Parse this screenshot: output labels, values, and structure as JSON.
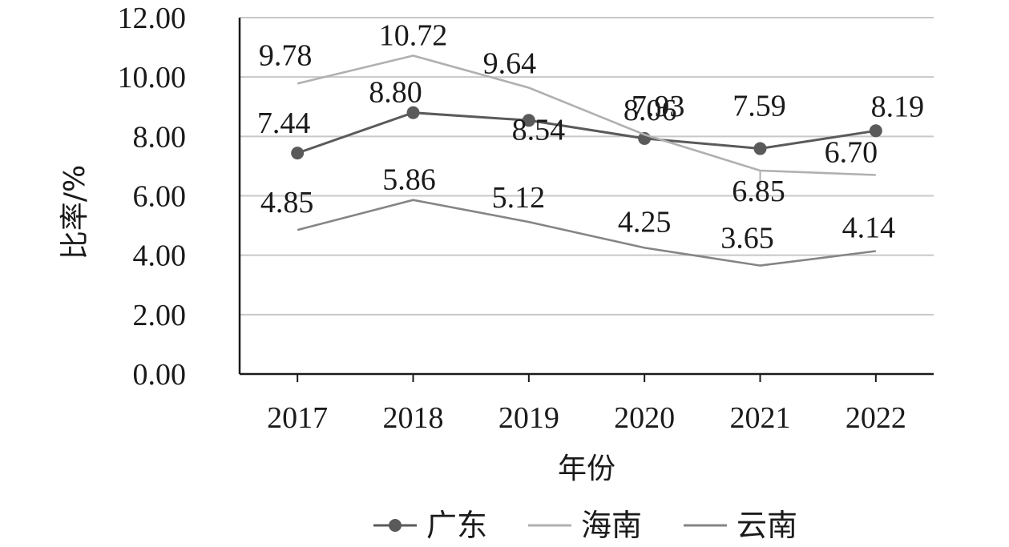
{
  "chart_data": {
    "type": "line",
    "categories": [
      "2017",
      "2018",
      "2019",
      "2020",
      "2021",
      "2022"
    ],
    "xlabel": "年份",
    "ylabel": "比率/%",
    "ylim": [
      0,
      12
    ],
    "yticks": [
      "0.00",
      "2.00",
      "4.00",
      "6.00",
      "8.00",
      "10.00",
      "12.00"
    ],
    "grid": true,
    "legend_position": "bottom",
    "series": [
      {
        "name": "广东",
        "values": [
          7.44,
          8.8,
          8.54,
          7.93,
          7.59,
          8.19
        ],
        "labels": [
          "7.44",
          "8.80",
          "8.54",
          "7.93",
          "7.59",
          "8.19"
        ],
        "color": "#5a5a5a",
        "marker": "circle"
      },
      {
        "name": "海南",
        "values": [
          9.78,
          10.72,
          9.64,
          8.06,
          6.85,
          6.7
        ],
        "labels": [
          "9.78",
          "10.72",
          "9.64",
          "8.06",
          "6.85",
          "6.70"
        ],
        "color": "#b0b0b0",
        "marker": "none"
      },
      {
        "name": "云南",
        "values": [
          4.85,
          5.86,
          5.12,
          4.25,
          3.65,
          4.14
        ],
        "labels": [
          "4.85",
          "5.86",
          "5.12",
          "4.25",
          "3.65",
          "4.14"
        ],
        "color": "#858585",
        "marker": "none"
      }
    ]
  }
}
